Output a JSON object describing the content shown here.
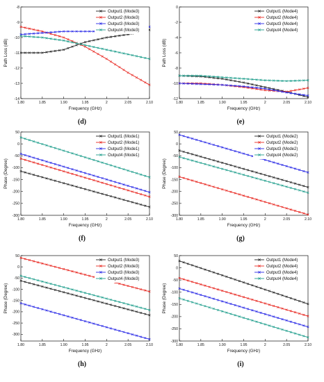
{
  "series_colors": {
    "Output1": "#222222",
    "Output2": "#e8261f",
    "Output3": "#2727e6",
    "Output4": "#1f9e8c"
  },
  "chart_data": [
    {
      "type": "line",
      "panel_label": "(d)",
      "xlabel": "Frequency (GHz)",
      "ylabel": "Path Loss (dB)",
      "xlim": [
        1.8,
        2.1
      ],
      "ylim": [
        -14,
        -8
      ],
      "xticks": [
        1.8,
        1.85,
        1.9,
        1.95,
        2.0,
        2.05,
        2.1
      ],
      "yticks": [
        -8,
        -9,
        -10,
        -11,
        -12,
        -13,
        -14
      ],
      "legend": "top-right",
      "series": [
        {
          "name": "Output1 (Mode3)",
          "color": "#222222",
          "x": [
            1.8,
            1.85,
            1.9,
            1.95,
            2.0,
            2.05,
            2.1
          ],
          "y": [
            -11.0,
            -11.0,
            -10.8,
            -10.3,
            -10.0,
            -9.8,
            -9.5
          ]
        },
        {
          "name": "Output2 (Mode3)",
          "color": "#e8261f",
          "x": [
            1.8,
            1.85,
            1.9,
            1.95,
            2.0,
            2.05,
            2.1
          ],
          "y": [
            -9.3,
            -9.6,
            -10.0,
            -10.6,
            -11.4,
            -12.3,
            -13.1
          ]
        },
        {
          "name": "Output3 (Mode3)",
          "color": "#2727e6",
          "x": [
            1.8,
            1.85,
            1.9,
            1.95,
            2.0,
            2.05,
            2.1
          ],
          "y": [
            -9.8,
            -9.7,
            -9.6,
            -9.6,
            -9.6,
            -9.5,
            -9.3
          ]
        },
        {
          "name": "Output4 (Mode3)",
          "color": "#1f9e8c",
          "x": [
            1.8,
            1.85,
            1.9,
            1.95,
            2.0,
            2.05,
            2.1
          ],
          "y": [
            -9.9,
            -10.0,
            -10.2,
            -10.5,
            -10.8,
            -11.1,
            -11.4
          ]
        }
      ]
    },
    {
      "type": "line",
      "panel_label": "(e)",
      "xlabel": "Frequency (GHz)",
      "ylabel": "Path Loss (dB)",
      "xlim": [
        1.8,
        2.1
      ],
      "ylim": [
        -12,
        0
      ],
      "xticks": [
        1.8,
        1.85,
        1.9,
        1.95,
        2.0,
        2.05,
        2.1
      ],
      "yticks": [
        0,
        -2,
        -4,
        -6,
        -8,
        -10,
        -12
      ],
      "legend": "top-right",
      "series": [
        {
          "name": "Output1 (Mode4)",
          "color": "#222222",
          "x": [
            1.8,
            1.85,
            1.9,
            1.95,
            2.0,
            2.05,
            2.1
          ],
          "y": [
            -9.0,
            -9.1,
            -9.4,
            -9.9,
            -10.5,
            -11.1,
            -11.8
          ]
        },
        {
          "name": "Output2 (Mode4)",
          "color": "#e8261f",
          "x": [
            1.8,
            1.85,
            1.9,
            1.95,
            2.0,
            2.05,
            2.1
          ],
          "y": [
            -10.0,
            -10.0,
            -10.2,
            -10.5,
            -10.9,
            -11.1,
            -10.6
          ]
        },
        {
          "name": "Output3 (Mode4)",
          "color": "#2727e6",
          "x": [
            1.8,
            1.85,
            1.9,
            1.95,
            2.0,
            2.05,
            2.1
          ],
          "y": [
            -10.0,
            -10.1,
            -10.2,
            -10.4,
            -10.7,
            -11.2,
            -11.6
          ]
        },
        {
          "name": "Output4 (Mode4)",
          "color": "#1f9e8c",
          "x": [
            1.8,
            1.85,
            1.9,
            1.95,
            2.0,
            2.05,
            2.1
          ],
          "y": [
            -9.0,
            -9.0,
            -9.2,
            -9.4,
            -9.6,
            -9.7,
            -9.6
          ]
        }
      ]
    },
    {
      "type": "line",
      "panel_label": "(f)",
      "xlabel": "Frequency (GHz)",
      "ylabel": "Phase (Degree)",
      "xlim": [
        1.8,
        2.1
      ],
      "ylim": [
        -300,
        50
      ],
      "xticks": [
        1.8,
        1.85,
        1.9,
        1.95,
        2.0,
        2.05,
        2.1
      ],
      "yticks": [
        50,
        0,
        -50,
        -100,
        -150,
        -200,
        -250,
        -300
      ],
      "legend": "top-right",
      "series": [
        {
          "name": "Output1 (Mode1)",
          "color": "#222222",
          "x": [
            1.8,
            2.1
          ],
          "y": [
            -115,
            -265
          ]
        },
        {
          "name": "Output2 (Mode1)",
          "color": "#e8261f",
          "x": [
            1.8,
            2.1
          ],
          "y": [
            -62,
            -222
          ]
        },
        {
          "name": "Output3 (Mode1)",
          "color": "#2727e6",
          "x": [
            1.8,
            2.1
          ],
          "y": [
            -42,
            -203
          ]
        },
        {
          "name": "Output4 (Mode1)",
          "color": "#1f9e8c",
          "x": [
            1.8,
            2.1
          ],
          "y": [
            27,
            -140
          ]
        }
      ]
    },
    {
      "type": "line",
      "panel_label": "(g)",
      "xlabel": "Frequency (GHz)",
      "ylabel": "Phase (Degree)",
      "xlim": [
        1.8,
        2.1
      ],
      "ylim": [
        -300,
        50
      ],
      "xticks": [
        1.8,
        1.85,
        1.9,
        1.95,
        2.0,
        2.05,
        2.1
      ],
      "yticks": [
        50,
        0,
        -50,
        -100,
        -150,
        -200,
        -250,
        -300
      ],
      "legend": "top-right",
      "series": [
        {
          "name": "Output1 (Mode2)",
          "color": "#222222",
          "x": [
            1.8,
            2.1
          ],
          "y": [
            -28,
            -182
          ]
        },
        {
          "name": "Output2 (Mode2)",
          "color": "#e8261f",
          "x": [
            1.8,
            2.1
          ],
          "y": [
            -138,
            -297
          ]
        },
        {
          "name": "Output3 (Mode2)",
          "color": "#2727e6",
          "x": [
            1.8,
            2.1
          ],
          "y": [
            38,
            -120
          ]
        },
        {
          "name": "Output4 (Mode2)",
          "color": "#1f9e8c",
          "x": [
            1.8,
            2.1
          ],
          "y": [
            -55,
            -205
          ]
        }
      ]
    },
    {
      "type": "line",
      "panel_label": "(h)",
      "xlabel": "Frequency (GHz)",
      "ylabel": "Phase (Degree)",
      "xlim": [
        1.8,
        2.1
      ],
      "ylim": [
        -330,
        50
      ],
      "xticks": [
        1.8,
        1.85,
        1.9,
        1.95,
        2.0,
        2.05,
        2.1
      ],
      "yticks": [
        50,
        0,
        -50,
        -100,
        -150,
        -200,
        -250,
        -300
      ],
      "legend": "top-right",
      "series": [
        {
          "name": "Output1 (Mode3)",
          "color": "#222222",
          "x": [
            1.8,
            2.1
          ],
          "y": [
            -62,
            -215
          ]
        },
        {
          "name": "Output2 (Mode3)",
          "color": "#e8261f",
          "x": [
            1.8,
            2.1
          ],
          "y": [
            40,
            -110
          ]
        },
        {
          "name": "Output3 (Mode3)",
          "color": "#2727e6",
          "x": [
            1.8,
            2.1
          ],
          "y": [
            -162,
            -322
          ]
        },
        {
          "name": "Output4 (Mode3)",
          "color": "#1f9e8c",
          "x": [
            1.8,
            2.1
          ],
          "y": [
            -40,
            -192
          ]
        }
      ]
    },
    {
      "type": "line",
      "panel_label": "(i)",
      "xlabel": "Frequency (GHz)",
      "ylabel": "Phase (Degree)",
      "xlim": [
        1.8,
        2.1
      ],
      "ylim": [
        -300,
        50
      ],
      "xticks": [
        1.8,
        1.85,
        1.9,
        1.95,
        2.0,
        2.05,
        2.1
      ],
      "yticks": [
        50,
        0,
        -50,
        -100,
        -150,
        -200,
        -250,
        -300
      ],
      "legend": "top-right",
      "series": [
        {
          "name": "Output1 (Mode4)",
          "color": "#222222",
          "x": [
            1.8,
            2.1
          ],
          "y": [
            28,
            -148
          ]
        },
        {
          "name": "Output2 (Mode4)",
          "color": "#e8261f",
          "x": [
            1.8,
            2.1
          ],
          "y": [
            -42,
            -198
          ]
        },
        {
          "name": "Output3 (Mode4)",
          "color": "#2727e6",
          "x": [
            1.8,
            2.1
          ],
          "y": [
            -85,
            -242
          ]
        },
        {
          "name": "Output4 (Mode4)",
          "color": "#1f9e8c",
          "x": [
            1.8,
            2.1
          ],
          "y": [
            -125,
            -285
          ]
        }
      ]
    }
  ]
}
